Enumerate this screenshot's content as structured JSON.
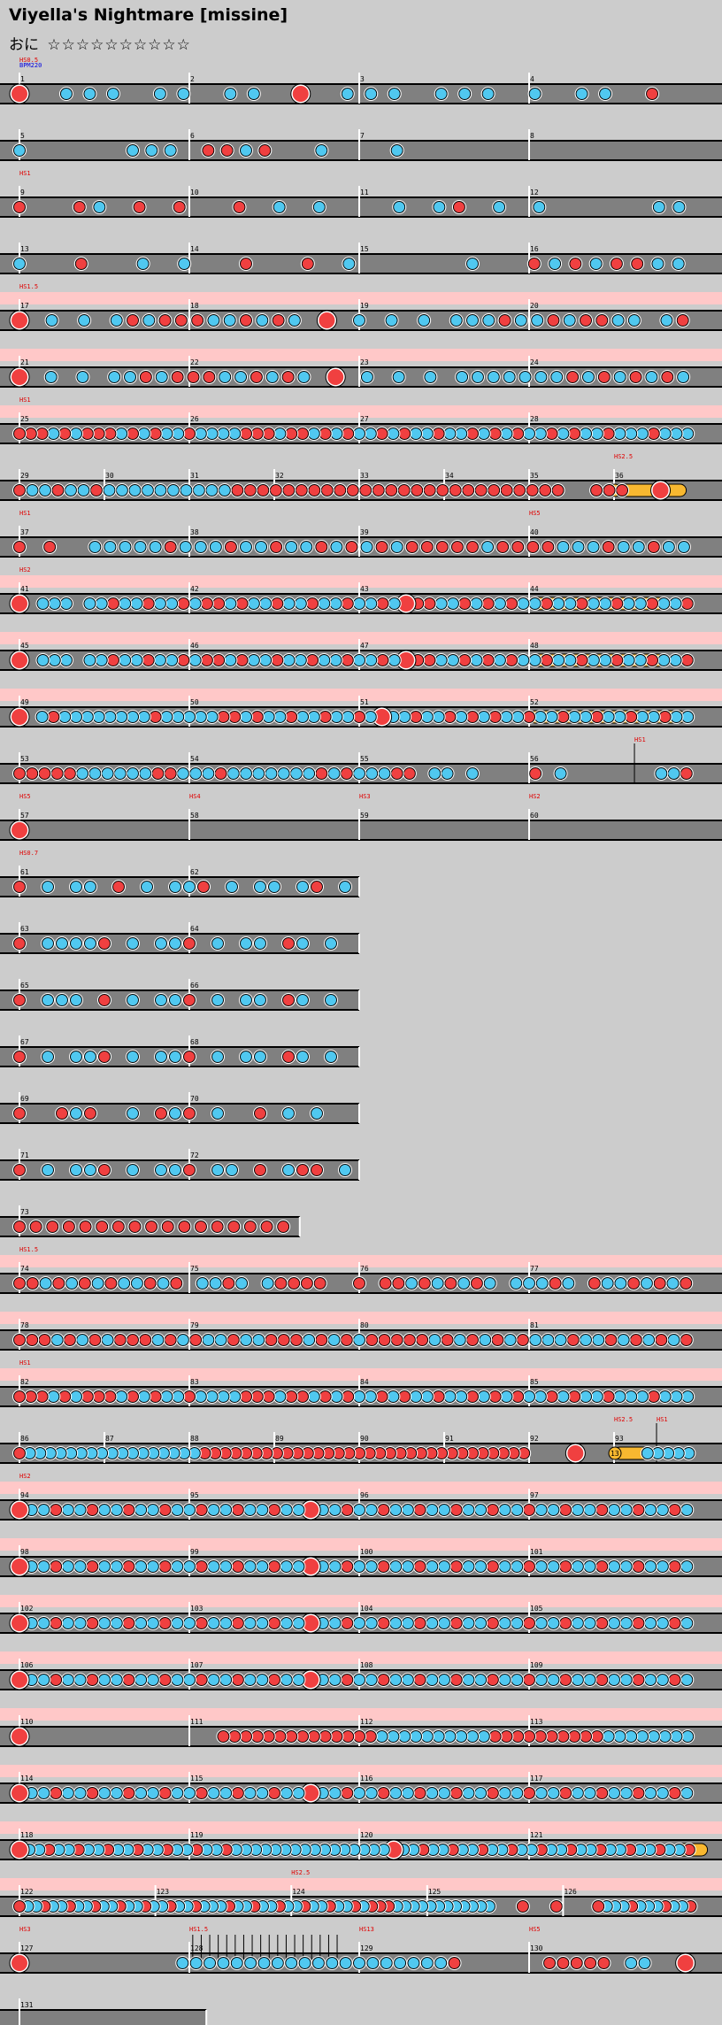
{
  "header": {
    "title": "Viyella's Nightmare [missine]",
    "course": "おに",
    "stars": "☆☆☆☆☆☆☆☆☆☆"
  },
  "colors": {
    "background": "#cccccc",
    "lane": "#808080",
    "gogo_band": "#ffc8c8",
    "don": "#f04040",
    "ka": "#50c8f0",
    "drumroll": "#f8b830",
    "scroll_label": "#e00000",
    "bpm_label": "#0000e0"
  },
  "icons": {
    "don": "red-don-note",
    "ka": "blue-ka-note",
    "roll": "yellow-drumroll"
  },
  "rows": [
    {
      "measures": [
        {
          "n": "1"
        },
        {
          "n": "2"
        },
        {
          "n": "3"
        },
        {
          "n": "4"
        }
      ],
      "labels": [
        {
          "m": 0,
          "t": "HS0.5",
          "c": "s"
        },
        {
          "m": 0,
          "t": "BPM220",
          "c": "b",
          "line": 2
        }
      ],
      "notes": "DxkkkxkkxkkxDxkkkxkkkxkxkkxdx"
    },
    {
      "measures": [
        {
          "n": "5"
        },
        {
          "n": "6"
        },
        {
          "n": "7"
        },
        {
          "n": "8"
        }
      ],
      "notes": "kxxxxxkkkxddkdxxkxxxkxxxxxxxxxxxxxxx"
    },
    {
      "measures": [
        {
          "n": "9"
        },
        {
          "n": "10"
        },
        {
          "n": "11"
        },
        {
          "n": "12"
        }
      ],
      "labels": [
        {
          "m": 0,
          "t": "HS1",
          "c": "s"
        }
      ],
      "notes": "dxxdkxdxdxxdxkxkxxxkxkdxkxkxxxxxkk"
    },
    {
      "measures": [
        {
          "n": "13"
        },
        {
          "n": "14"
        },
        {
          "n": "15"
        },
        {
          "n": "16"
        }
      ],
      "notes": "kxxdxxkxkxxdxxdxkxxxxxkxxdkdkddkk"
    },
    {
      "gogo": true,
      "measures": [
        {
          "n": "17"
        },
        {
          "n": "18"
        },
        {
          "n": "19"
        },
        {
          "n": "20"
        }
      ],
      "labels": [
        {
          "m": 0,
          "t": "HS1.5",
          "c": "s"
        }
      ],
      "notes": "DxkxkxkdkdddkkdkdkxDxkxkxkxkkkdkkdkddkkxkd"
    },
    {
      "gogo": true,
      "measures": [
        {
          "n": "21"
        },
        {
          "n": "22"
        },
        {
          "n": "23"
        },
        {
          "n": "24"
        }
      ],
      "notes": "DxkxkxkkdkdddkkdkdkxDxkxkxkxkkkkkkkdkdkdkdk"
    },
    {
      "gogo": true,
      "measures": [
        {
          "n": "25"
        },
        {
          "n": "26"
        },
        {
          "n": "27"
        },
        {
          "n": "28"
        }
      ],
      "labels": [
        {
          "m": 0,
          "t": "HS1",
          "c": "s"
        }
      ],
      "notes": "dddkdkdddkdkdkkdkkkkdddkddkdkdkkdkdkkdkkdkdkdkkdkdkkdkkkdkkk"
    },
    {
      "measures": [
        {
          "n": "29"
        },
        {
          "n": "30"
        },
        {
          "n": "31"
        },
        {
          "n": "32"
        },
        {
          "n": "33"
        },
        {
          "n": "34"
        },
        {
          "n": "35"
        },
        {
          "n": "36",
          "roll": [
            0.0,
            0.85
          ],
          "rollnum": "13"
        }
      ],
      "labels": [
        {
          "m": 7,
          "t": "HS2.5",
          "c": "s"
        }
      ],
      "notes": "dkkdkkdkkkkkkkkkkddddddddddddddddddddddddddxxdddxxDxx"
    },
    {
      "measures": [
        {
          "n": "37"
        },
        {
          "n": "38"
        },
        {
          "n": "39"
        },
        {
          "n": "40"
        }
      ],
      "labels": [
        {
          "m": 0,
          "t": "HS1",
          "c": "s"
        },
        {
          "m": 3,
          "t": "HS5",
          "c": "s"
        }
      ],
      "notes": "dxdxxkkkkkdkkkdkkdkkdkdkdkdddddkddddkkkdkkdkk"
    },
    {
      "gogo": true,
      "measures": [
        {
          "n": "41"
        },
        {
          "n": "42"
        },
        {
          "n": "43"
        },
        {
          "n": "44",
          "roll": [
            0.0,
            0.8
          ]
        }
      ],
      "labels": [
        {
          "m": 0,
          "t": "HS2",
          "c": "s"
        }
      ],
      "notes": "DxkkkxkkdkkdkkdkddkdkkdkkdkkdkkdkDddkkdkdkdkkdkkdkkdkkdkkd"
    },
    {
      "gogo": true,
      "measures": [
        {
          "n": "45"
        },
        {
          "n": "46"
        },
        {
          "n": "47"
        },
        {
          "n": "48",
          "roll": [
            0.0,
            0.8
          ]
        }
      ],
      "notes": "DxkkkxkkdkkdkkdkddkdkkdkkdkkdkkdkDddkkdkdkdkkdkkdkkdkkdkkd"
    },
    {
      "gogo": true,
      "measures": [
        {
          "n": "49"
        },
        {
          "n": "50"
        },
        {
          "n": "51"
        },
        {
          "n": "52",
          "roll": [
            0.0,
            0.92
          ]
        }
      ],
      "notes": "DxkdkkkkkkkkdkkkkkddkdkkdkkdkkdkDkkdkkdkdkdkkdkkdkkdkkdkkdkk"
    },
    {
      "measures": [
        {
          "n": "53"
        },
        {
          "n": "54"
        },
        {
          "n": "55"
        },
        {
          "n": "56"
        }
      ],
      "labels": [
        {
          "m": 3,
          "t": "HS1",
          "c": "s",
          "pos": 0.62
        }
      ],
      "notes": "dddddkkkkkkddkkkdkkkkkkkdkdkkkddxkkxkxxxxdxkxxxxxxxkkd"
    },
    {
      "measures": [
        {
          "n": "57"
        },
        {
          "n": "58"
        },
        {
          "n": "59"
        },
        {
          "n": "60"
        }
      ],
      "labels": [
        {
          "m": 0,
          "t": "HS5",
          "c": "s"
        },
        {
          "m": 1,
          "t": "HS4",
          "c": "s"
        },
        {
          "m": 2,
          "t": "HS3",
          "c": "s"
        },
        {
          "m": 3,
          "t": "HS2",
          "c": "s"
        }
      ],
      "notes": "D"
    },
    {
      "width": 2,
      "measures": [
        {
          "n": "61"
        },
        {
          "n": "62"
        }
      ],
      "labels": [
        {
          "m": 0,
          "t": "HS0.7",
          "c": "s"
        }
      ],
      "notes": "dxkxkkxdxkxkkdxkxkkxkdxk"
    },
    {
      "width": 2,
      "measures": [
        {
          "n": "63"
        },
        {
          "n": "64"
        }
      ],
      "notes": "dxkkkkdxkxkkdxkxkkxdkxkx"
    },
    {
      "width": 2,
      "measures": [
        {
          "n": "65"
        },
        {
          "n": "66"
        }
      ],
      "notes": "dxkkkxdxkxkkdxkxkkxdkxkx"
    },
    {
      "width": 2,
      "measures": [
        {
          "n": "67"
        },
        {
          "n": "68"
        }
      ],
      "notes": "dxkxkkdxkxkkdxkxkkxdkxkx"
    },
    {
      "width": 2,
      "measures": [
        {
          "n": "69"
        },
        {
          "n": "70"
        }
      ],
      "notes": "dxxdkdxxkxdkdxkxxdxkxkxx"
    },
    {
      "width": 2,
      "measures": [
        {
          "n": "71"
        },
        {
          "n": "72"
        }
      ],
      "notes": "dxkxkkdxkxkkdxkkxdxkddxk"
    },
    {
      "width": 1.65,
      "measures": [
        {
          "n": "73"
        }
      ],
      "notes": "ddddddddddddddddd"
    },
    {
      "gogo": true,
      "measures": [
        {
          "n": "74"
        },
        {
          "n": "75"
        },
        {
          "n": "76"
        },
        {
          "n": "77"
        }
      ],
      "labels": [
        {
          "m": 0,
          "t": "HS1.5",
          "c": "s"
        }
      ],
      "notes": "ddkdkdkdkkdkdxkkdkxkddddxxdxddkdkdkdkxkkkdkxdkkdkdkd"
    },
    {
      "gogo": true,
      "measures": [
        {
          "n": "78"
        },
        {
          "n": "79"
        },
        {
          "n": "80"
        },
        {
          "n": "81"
        }
      ],
      "notes": "dddkdkdkdddkdkdkkdkkdddkdkdkdddddkdkdkdkdkkkdkkdkdkdkd"
    },
    {
      "gogo": true,
      "measures": [
        {
          "n": "82"
        },
        {
          "n": "83"
        },
        {
          "n": "84"
        },
        {
          "n": "85"
        }
      ],
      "labels": [
        {
          "m": 0,
          "t": "HS1",
          "c": "s"
        }
      ],
      "notes": "dddkdkdddkdkdkkdkkkkdddkddkdkdkkdkdkkdkkdkdkdkkdkdkkdkkkdkkk"
    },
    {
      "measures": [
        {
          "n": "86"
        },
        {
          "n": "87"
        },
        {
          "n": "88"
        },
        {
          "n": "89"
        },
        {
          "n": "90"
        },
        {
          "n": "91"
        },
        {
          "n": "92"
        },
        {
          "n": "93",
          "roll": [
            0.0,
            0.42
          ],
          "rollnum": "13"
        }
      ],
      "labels": [
        {
          "m": 7,
          "t": "HS2.5",
          "c": "s"
        },
        {
          "m": 7,
          "t": "HS1",
          "c": "s",
          "pos": 0.5
        }
      ],
      "notes": "dkkkkkkkkkkkkkkkkkddddddddddddddddddddddddddddddddxxxxDxxxxxxkkkkk"
    },
    {
      "gogo": true,
      "measures": [
        {
          "n": "94"
        },
        {
          "n": "95"
        },
        {
          "n": "96"
        },
        {
          "n": "97"
        }
      ],
      "labels": [
        {
          "m": 0,
          "t": "HS2",
          "c": "s"
        }
      ],
      "notes": "DkkdkkdkkdkkdkkdkkdkkdkkDkkdkkdkkdkkdkkdkkdkkdkkdkkdkkdk"
    },
    {
      "gogo": true,
      "measures": [
        {
          "n": "98"
        },
        {
          "n": "99"
        },
        {
          "n": "100"
        },
        {
          "n": "101"
        }
      ],
      "notes": "DkkdkkdkkdkkdkkdkkdkkdkkDkkdkkdkkdkkdkkdkkdkkdkkdkkdkkdk"
    },
    {
      "gogo": true,
      "measures": [
        {
          "n": "102"
        },
        {
          "n": "103"
        },
        {
          "n": "104"
        },
        {
          "n": "105"
        }
      ],
      "notes": "DkkdkkdkkdkkdkkdkkdkkdkkDkkdkkdkkdkkdkkdkkdkkdkkdkkdkkdk"
    },
    {
      "gogo": true,
      "measures": [
        {
          "n": "106"
        },
        {
          "n": "107"
        },
        {
          "n": "108"
        },
        {
          "n": "109"
        }
      ],
      "notes": "DkkdkkdkkdkkdkkdkkdkkdkkDkkdkkdkkdkkdkkdkkdkkdkkdkkdkkdk"
    },
    {
      "gogo": true,
      "measures": [
        {
          "n": "110"
        },
        {
          "n": "111"
        },
        {
          "n": "112"
        },
        {
          "n": "113"
        }
      ],
      "notes": "Dxxxxxxxxxxxxxxxxxddddddddddddddkkkkkkkkkkddddddddddkkkkkkkk"
    },
    {
      "gogo": true,
      "measures": [
        {
          "n": "114"
        },
        {
          "n": "115"
        },
        {
          "n": "116"
        },
        {
          "n": "117"
        }
      ],
      "notes": "DkkdkkdkkdkkdkkdkkdkkdkkDkkdkkdkkdkkdkkdkkdkkdkkdkkdkkdk"
    },
    {
      "gogo": true,
      "measures": [
        {
          "n": "118"
        },
        {
          "n": "119"
        },
        {
          "n": "120"
        },
        {
          "n": "121",
          "roll": [
            0.85,
            1.05
          ]
        }
      ],
      "notes": "DkkdkkdkkdkkdkkdkkdkkdkkkkkkkkkkkkkkkkDkkdkkdkkdkkdkkdkkdkkdkkdkkdkkd"
    },
    {
      "gogo": true,
      "measures": [
        {
          "n": "122"
        },
        {
          "n": "123"
        },
        {
          "n": "124"
        },
        {
          "n": "125"
        },
        {
          "n": "126"
        }
      ],
      "labels": [
        {
          "m": 2,
          "t": "HS2.5",
          "c": "s"
        }
      ],
      "notes": "dkkdkkdkkdkkdkkdkkdkkdkkkdkkdkkdkkdkkdkkdkdddkkkkkkkkkkkkxxxdxxxdxxxxdkkkdkkkdkkd"
    },
    {
      "measures": [
        {
          "n": "127"
        },
        {
          "n": "128"
        },
        {
          "n": "129"
        },
        {
          "n": "130"
        }
      ],
      "labels": [
        {
          "m": 0,
          "t": "HS3",
          "c": "s"
        },
        {
          "m": 1,
          "t": "HS1.5",
          "c": "s"
        },
        {
          "m": 2,
          "t": "HS13",
          "c": "s"
        },
        {
          "m": 3,
          "t": "HS5",
          "c": "s"
        }
      ],
      "ticks": true,
      "notes": "DxxxxxxxxxxxkkkkkkkkkkkkkkkkkkkkdxxxxxxdddddxkkxxD"
    },
    {
      "width": 1.1,
      "measures": [
        {
          "n": "131"
        }
      ],
      "notes": ""
    }
  ]
}
